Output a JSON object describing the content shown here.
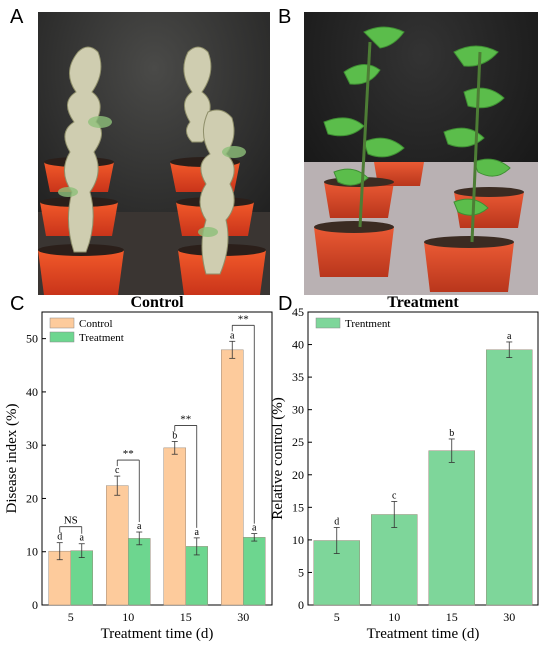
{
  "panels": {
    "a": "A",
    "b": "B",
    "c": "C",
    "d": "D"
  },
  "photos": {
    "a": {
      "pot_color": "#e8441f",
      "background": "#2a2a2a",
      "foliage": "#c9c7a8"
    },
    "b": {
      "pot_color": "#d9472a",
      "background": "#1e1e1e",
      "foliage": "#5cb84a"
    }
  },
  "colors": {
    "control": "#fdcb9c",
    "treatment": "#6dd68f",
    "trentment": "#7ed69a"
  },
  "chart_data": [
    {
      "type": "bar",
      "title": "Control",
      "xlabel": "Treatment time (d)",
      "ylabel": "Disease index (%)",
      "ylim": [
        0,
        55
      ],
      "yticks": [
        0,
        10,
        20,
        30,
        40,
        50
      ],
      "categories": [
        "5",
        "10",
        "15",
        "30"
      ],
      "legend_position": "top-left",
      "series": [
        {
          "name": "Control",
          "values": [
            10.1,
            22.4,
            29.5,
            47.9
          ],
          "errors": [
            1.6,
            1.8,
            1.2,
            1.6
          ],
          "letters": [
            "d",
            "c",
            "b",
            "a"
          ]
        },
        {
          "name": "Treatment",
          "values": [
            10.2,
            12.5,
            11.0,
            12.7
          ],
          "errors": [
            1.3,
            1.2,
            1.6,
            0.7
          ],
          "letters": [
            "a",
            "a",
            "a",
            "a"
          ]
        }
      ],
      "significance": [
        "NS",
        "**",
        "**",
        "**"
      ]
    },
    {
      "type": "bar",
      "title": "Treatment",
      "xlabel": "Treatment time (d)",
      "ylabel": "Relative control (%)",
      "ylim": [
        0,
        45
      ],
      "yticks": [
        0,
        5,
        10,
        15,
        20,
        25,
        30,
        35,
        40,
        45
      ],
      "categories": [
        "5",
        "10",
        "15",
        "30"
      ],
      "legend_position": "top-left",
      "series": [
        {
          "name": "Trentment",
          "values": [
            9.9,
            13.9,
            23.7,
            39.2
          ],
          "errors": [
            2.0,
            2.0,
            1.8,
            1.2
          ],
          "letters": [
            "d",
            "c",
            "b",
            "a"
          ]
        }
      ]
    }
  ]
}
